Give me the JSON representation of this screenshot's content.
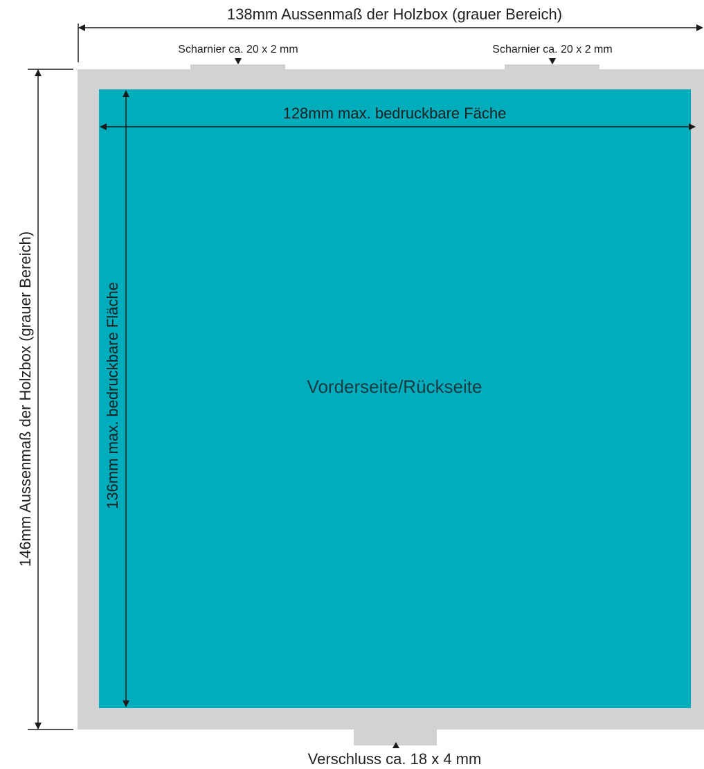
{
  "outer_width_label": "138mm Aussenmaß der Holzbox (grauer Bereich)",
  "outer_height_label": "146mm Aussenmaß der Holzbox (grauer Bereich)",
  "inner_width_label": "128mm max. bedruckbare Fäche",
  "inner_height_label": "136mm max. bedruckbare Fläche",
  "hinge_labels": [
    "Scharnier ca. 20 x 2 mm",
    "Scharnier ca. 20 x 2 mm"
  ],
  "closure_label": "Verschluss ca. 18 x 4 mm",
  "center_label": "Vorderseite/Rückseite",
  "colors": {
    "box_gray": "#d2d2d4",
    "printable_teal": "#00adbd",
    "line": "#1a1a1a",
    "text": "#1f1f1f"
  }
}
